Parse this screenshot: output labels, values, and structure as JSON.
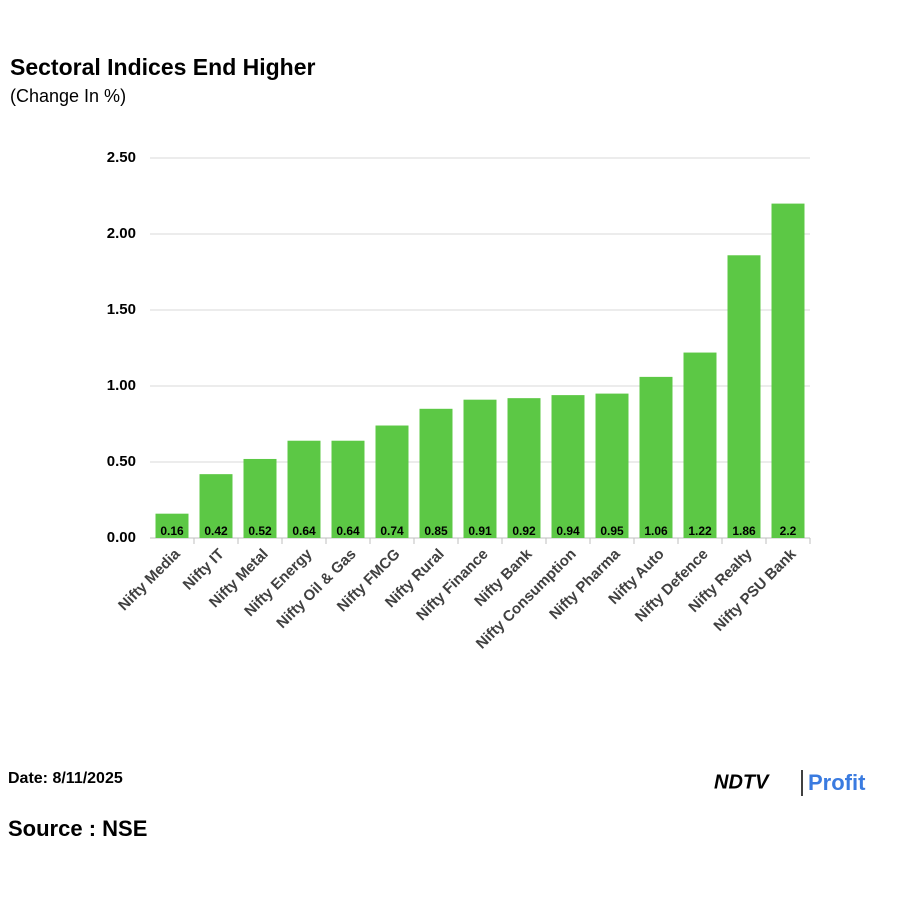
{
  "chart_data": {
    "type": "bar",
    "title": "Sectoral Indices End Higher",
    "subtitle": "(Change In %)",
    "categories": [
      "Nifty Media",
      "Nifty IT",
      "Nifty Metal",
      "Nifty Energy",
      "Nifty Oil & Gas",
      "Nifty FMCG",
      "Nifty Rural",
      "Nifty Finance",
      "Nifty Bank",
      "Nifty Consumption",
      "Nifty Pharma",
      "Nifty Auto",
      "Nifty Defence",
      "Nifty Realty",
      "Nifty PSU Bank"
    ],
    "values": [
      0.16,
      0.42,
      0.52,
      0.64,
      0.64,
      0.74,
      0.85,
      0.91,
      0.92,
      0.94,
      0.95,
      1.06,
      1.22,
      1.86,
      2.2
    ],
    "color": "#5cc845",
    "ylim": [
      0,
      2.5
    ],
    "yticks": [
      {
        "value": 0,
        "label": "0.00"
      },
      {
        "value": 0.5,
        "label": "0.50"
      },
      {
        "value": 1,
        "label": "1.00"
      },
      {
        "value": 1.5,
        "label": "1.50"
      },
      {
        "value": 2,
        "label": "2.00"
      },
      {
        "value": 2.5,
        "label": "2.50"
      }
    ],
    "grid": true
  },
  "footer": {
    "date": "Date: 8/11/2025",
    "source": "Source : NSE",
    "logo_ndtv": "NDTV",
    "logo_profit": "Profit"
  }
}
